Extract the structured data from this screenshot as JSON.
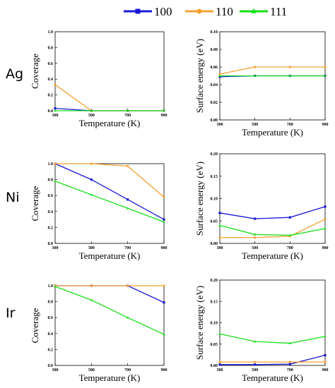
{
  "legend": {
    "position": "top-center",
    "entries": [
      {
        "name": "100",
        "color": "#1a1ad6",
        "marker": "square"
      },
      {
        "name": "110",
        "color": "#f5a030",
        "marker": "circle"
      },
      {
        "name": "111",
        "color": "#17e017",
        "marker": "triangle"
      }
    ]
  },
  "rows": [
    {
      "label": "Ag"
    },
    {
      "label": "Ni"
    },
    {
      "label": "Ir"
    }
  ],
  "chart_data": [
    {
      "type": "line",
      "row": "Ag",
      "panel": "coverage",
      "xlabel": "Temperature (K)",
      "ylabel": "Coverage",
      "x": [
        300,
        500,
        700,
        900
      ],
      "xlim": [
        300,
        900
      ],
      "xticks": [
        "300",
        "500",
        "700",
        "900"
      ],
      "ylim": [
        0,
        1.0
      ],
      "yticks": [
        "0.0",
        "0.2",
        "0.4",
        "0.6",
        "0.8",
        "1.0"
      ],
      "series": [
        {
          "name": "100",
          "values": [
            0.03,
            0.0,
            0.0,
            0.0
          ]
        },
        {
          "name": "110",
          "values": [
            0.33,
            0.0,
            0.0,
            0.0
          ]
        },
        {
          "name": "111",
          "values": [
            0.0,
            0.0,
            0.0,
            0.0
          ]
        }
      ]
    },
    {
      "type": "line",
      "row": "Ag",
      "panel": "surface_energy",
      "xlabel": "Temperature (K)",
      "ylabel": "Surface energy (eV)",
      "x": [
        300,
        500,
        700,
        900
      ],
      "xlim": [
        300,
        900
      ],
      "xticks": [
        "300",
        "500",
        "700",
        "900"
      ],
      "ylim": [
        0,
        0.1
      ],
      "yticks": [
        "0.00",
        "0.02",
        "0.04",
        "0.06",
        "0.08",
        "0.10"
      ],
      "series": [
        {
          "name": "100",
          "values": [
            0.049,
            0.05,
            0.05,
            0.05
          ]
        },
        {
          "name": "110",
          "values": [
            0.052,
            0.06,
            0.06,
            0.06
          ]
        },
        {
          "name": "111",
          "values": [
            0.05,
            0.05,
            0.05,
            0.05
          ]
        }
      ]
    },
    {
      "type": "line",
      "row": "Ni",
      "panel": "coverage",
      "xlabel": "Temperature (K)",
      "ylabel": "Coverage",
      "x": [
        300,
        500,
        700,
        900
      ],
      "xlim": [
        300,
        900
      ],
      "xticks": [
        "300",
        "500",
        "700",
        "900"
      ],
      "ylim": [
        0,
        1.0
      ],
      "yticks": [
        "0.0",
        "0.2",
        "0.4",
        "0.6",
        "0.8",
        "1.0"
      ],
      "series": [
        {
          "name": "100",
          "values": [
            1.0,
            0.8,
            0.55,
            0.3
          ]
        },
        {
          "name": "110",
          "values": [
            1.0,
            1.0,
            0.97,
            0.58
          ]
        },
        {
          "name": "111",
          "values": [
            0.78,
            0.61,
            0.44,
            0.27
          ]
        }
      ]
    },
    {
      "type": "line",
      "row": "Ni",
      "panel": "surface_energy",
      "xlabel": "Temperature (K)",
      "ylabel": "Surface energy (eV)",
      "x": [
        300,
        500,
        700,
        900
      ],
      "xlim": [
        300,
        900
      ],
      "xticks": [
        "300",
        "500",
        "700",
        "900"
      ],
      "ylim": [
        0,
        0.2
      ],
      "yticks": [
        "0.00",
        "0.05",
        "0.10",
        "0.15",
        "0.20"
      ],
      "series": [
        {
          "name": "100",
          "values": [
            0.068,
            0.055,
            0.058,
            0.082
          ]
        },
        {
          "name": "110",
          "values": [
            0.013,
            0.013,
            0.016,
            0.054
          ]
        },
        {
          "name": "111",
          "values": [
            0.04,
            0.02,
            0.018,
            0.033
          ]
        }
      ]
    },
    {
      "type": "line",
      "row": "Ir",
      "panel": "coverage",
      "xlabel": "Temperature (K)",
      "ylabel": "Coverage",
      "x": [
        300,
        500,
        700,
        900
      ],
      "xlim": [
        300,
        900
      ],
      "xticks": [
        "300",
        "500",
        "700",
        "900"
      ],
      "ylim": [
        0,
        1.0
      ],
      "yticks": [
        "0.0",
        "0.2",
        "0.4",
        "0.6",
        "0.8",
        "1.0"
      ],
      "series": [
        {
          "name": "100",
          "values": [
            1.0,
            1.0,
            1.0,
            0.79
          ]
        },
        {
          "name": "110",
          "values": [
            1.0,
            1.0,
            1.0,
            1.0
          ]
        },
        {
          "name": "111",
          "values": [
            0.99,
            0.82,
            0.6,
            0.39
          ]
        }
      ]
    },
    {
      "type": "line",
      "row": "Ir",
      "panel": "surface_energy",
      "xlabel": "Temperature (K)",
      "ylabel": "Surface energy (eV)",
      "x": [
        300,
        500,
        700,
        900
      ],
      "xlim": [
        300,
        900
      ],
      "xticks": [
        "300",
        "500",
        "700",
        "900"
      ],
      "ylim": [
        0,
        0.2
      ],
      "yticks": [
        "0.00",
        "0.05",
        "0.10",
        "0.15",
        "0.20"
      ],
      "series": [
        {
          "name": "100",
          "values": [
            0.002,
            0.002,
            0.003,
            0.024
          ]
        },
        {
          "name": "110",
          "values": [
            0.008,
            0.008,
            0.008,
            0.008
          ]
        },
        {
          "name": "111",
          "values": [
            0.074,
            0.056,
            0.052,
            0.068
          ]
        }
      ]
    }
  ]
}
